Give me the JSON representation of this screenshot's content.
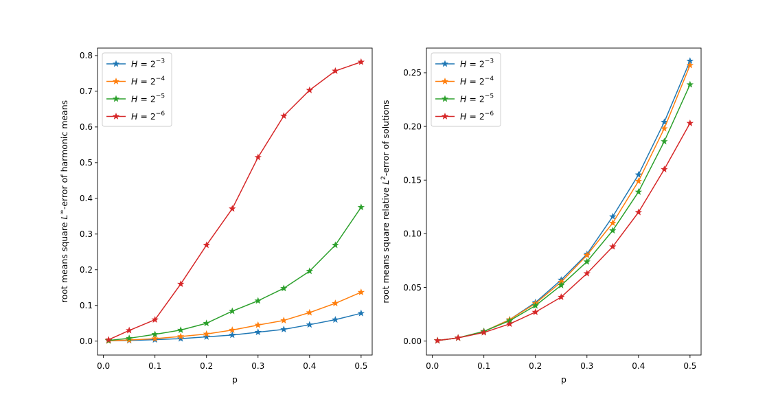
{
  "chart_data": [
    {
      "type": "line",
      "xlabel": "p",
      "ylabel": "root means square L∞-error of harmonic means",
      "ylabel_parts": [
        "root means square ",
        "L",
        "∞",
        "-error of harmonic means"
      ],
      "xlim": [
        -0.0115,
        0.5215
      ],
      "ylim": [
        -0.039,
        0.821
      ],
      "xticks": [
        0.0,
        0.1,
        0.2,
        0.3,
        0.4,
        0.5
      ],
      "xtick_labels": [
        "0.0",
        "0.1",
        "0.2",
        "0.3",
        "0.4",
        "0.5"
      ],
      "yticks": [
        0.0,
        0.1,
        0.2,
        0.3,
        0.4,
        0.5,
        0.6,
        0.7,
        0.8
      ],
      "ytick_labels": [
        "0.0",
        "0.1",
        "0.2",
        "0.3",
        "0.4",
        "0.5",
        "0.6",
        "0.7",
        "0.8"
      ],
      "legend_position": "upper-left",
      "x": [
        0.01,
        0.05,
        0.1,
        0.15,
        0.2,
        0.25,
        0.3,
        0.35,
        0.4,
        0.45,
        0.5
      ],
      "series": [
        {
          "name": "H = 2^-3",
          "name_base": "H = 2",
          "name_exp": "−3",
          "color": "#1f77b4",
          "values": [
            0.001,
            0.002,
            0.004,
            0.007,
            0.012,
            0.017,
            0.025,
            0.033,
            0.046,
            0.06,
            0.078
          ]
        },
        {
          "name": "H = 2^-4",
          "name_base": "H = 2",
          "name_exp": "−4",
          "color": "#ff7f0e",
          "values": [
            0.001,
            0.003,
            0.007,
            0.013,
            0.02,
            0.031,
            0.045,
            0.058,
            0.08,
            0.106,
            0.137
          ]
        },
        {
          "name": "H = 2^-5",
          "name_base": "H = 2",
          "name_exp": "−5",
          "color": "#2ca02c",
          "values": [
            0.002,
            0.008,
            0.019,
            0.031,
            0.05,
            0.084,
            0.113,
            0.148,
            0.196,
            0.269,
            0.375
          ]
        },
        {
          "name": "H = 2^-6",
          "name_base": "H = 2",
          "name_exp": "−6",
          "color": "#d62728",
          "values": [
            0.004,
            0.03,
            0.06,
            0.16,
            0.269,
            0.371,
            0.515,
            0.631,
            0.703,
            0.757,
            0.782
          ]
        }
      ]
    },
    {
      "type": "line",
      "xlabel": "p",
      "ylabel": "root means square relative L2-error of solutions",
      "ylabel_parts": [
        "root means square relative ",
        "L",
        "2",
        "-error of solutions"
      ],
      "xlim": [
        -0.0115,
        0.5215
      ],
      "ylim": [
        -0.013,
        0.273
      ],
      "xticks": [
        0.0,
        0.1,
        0.2,
        0.3,
        0.4,
        0.5
      ],
      "xtick_labels": [
        "0.0",
        "0.1",
        "0.2",
        "0.3",
        "0.4",
        "0.5"
      ],
      "yticks": [
        0.0,
        0.05,
        0.1,
        0.15,
        0.2,
        0.25
      ],
      "ytick_labels": [
        "0.00",
        "0.05",
        "0.10",
        "0.15",
        "0.20",
        "0.25"
      ],
      "legend_position": "upper-left",
      "x": [
        0.01,
        0.05,
        0.1,
        0.15,
        0.2,
        0.25,
        0.3,
        0.35,
        0.4,
        0.45,
        0.5
      ],
      "series": [
        {
          "name": "H = 2^-3",
          "name_base": "H = 2",
          "name_exp": "−3",
          "color": "#1f77b4",
          "values": [
            0.0005,
            0.003,
            0.009,
            0.02,
            0.036,
            0.057,
            0.081,
            0.116,
            0.155,
            0.204,
            0.261
          ]
        },
        {
          "name": "H = 2^-4",
          "name_base": "H = 2",
          "name_exp": "−4",
          "color": "#ff7f0e",
          "values": [
            0.0005,
            0.003,
            0.009,
            0.02,
            0.035,
            0.055,
            0.08,
            0.11,
            0.149,
            0.198,
            0.257
          ]
        },
        {
          "name": "H = 2^-5",
          "name_base": "H = 2",
          "name_exp": "−5",
          "color": "#2ca02c",
          "values": [
            0.0005,
            0.003,
            0.009,
            0.019,
            0.033,
            0.052,
            0.074,
            0.103,
            0.139,
            0.186,
            0.239
          ]
        },
        {
          "name": "H = 2^-6",
          "name_base": "H = 2",
          "name_exp": "−6",
          "color": "#d62728",
          "values": [
            0.0005,
            0.003,
            0.008,
            0.016,
            0.027,
            0.041,
            0.063,
            0.088,
            0.12,
            0.16,
            0.203
          ]
        }
      ]
    }
  ]
}
